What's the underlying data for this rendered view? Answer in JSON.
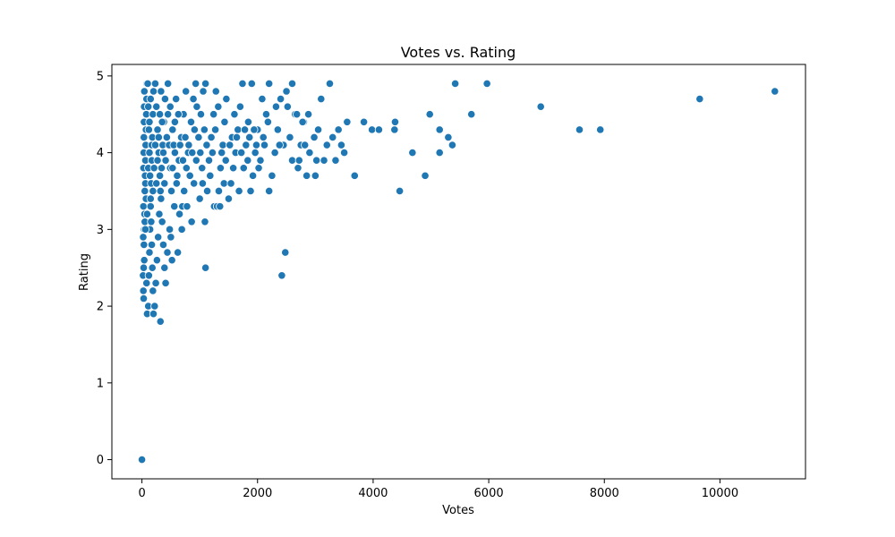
{
  "chart_data": {
    "type": "scatter",
    "title": "Votes vs. Rating",
    "xlabel": "Votes",
    "ylabel": "Rating",
    "xlim": [
      -520,
      11480
    ],
    "ylim": [
      -0.25,
      5.15
    ],
    "xticks": [
      0,
      2000,
      4000,
      6000,
      8000,
      10000
    ],
    "xtick_labels": [
      "0",
      "2000",
      "4000",
      "6000",
      "8000",
      "10000"
    ],
    "yticks": [
      0,
      1,
      2,
      3,
      4,
      5
    ],
    "ytick_labels": [
      "0",
      "1",
      "2",
      "3",
      "4",
      "5"
    ],
    "grid": false,
    "marker_color": "#1f77b4",
    "marker_edge_color": "#ffffff",
    "series": [
      {
        "points": [
          [
            0,
            0.0
          ],
          [
            25,
            2.2
          ],
          [
            30,
            2.5
          ],
          [
            35,
            2.8
          ],
          [
            40,
            3.0
          ],
          [
            45,
            3.2
          ],
          [
            50,
            3.5
          ],
          [
            55,
            3.7
          ],
          [
            60,
            3.9
          ],
          [
            65,
            4.1
          ],
          [
            70,
            4.3
          ],
          [
            75,
            4.5
          ],
          [
            80,
            4.7
          ],
          [
            85,
            4.9
          ],
          [
            20,
            2.4
          ],
          [
            22,
            2.9
          ],
          [
            26,
            3.3
          ],
          [
            28,
            3.8
          ],
          [
            32,
            4.0
          ],
          [
            34,
            4.2
          ],
          [
            36,
            4.4
          ],
          [
            38,
            4.6
          ],
          [
            42,
            4.8
          ],
          [
            30,
            2.1
          ],
          [
            40,
            2.6
          ],
          [
            50,
            3.1
          ],
          [
            60,
            3.6
          ],
          [
            70,
            3.4
          ],
          [
            80,
            2.3
          ],
          [
            90,
            1.9
          ],
          [
            110,
            2.0
          ],
          [
            120,
            2.4
          ],
          [
            130,
            2.7
          ],
          [
            140,
            3.0
          ],
          [
            150,
            3.3
          ],
          [
            160,
            3.6
          ],
          [
            170,
            3.9
          ],
          [
            180,
            4.2
          ],
          [
            190,
            4.5
          ],
          [
            200,
            4.8
          ],
          [
            100,
            4.9
          ],
          [
            110,
            4.6
          ],
          [
            120,
            4.3
          ],
          [
            130,
            4.0
          ],
          [
            140,
            3.7
          ],
          [
            150,
            3.4
          ],
          [
            160,
            3.1
          ],
          [
            170,
            2.8
          ],
          [
            180,
            2.5
          ],
          [
            190,
            2.2
          ],
          [
            200,
            1.9
          ],
          [
            220,
            2.0
          ],
          [
            240,
            2.3
          ],
          [
            260,
            2.6
          ],
          [
            280,
            2.9
          ],
          [
            300,
            3.2
          ],
          [
            320,
            3.5
          ],
          [
            340,
            3.8
          ],
          [
            360,
            4.1
          ],
          [
            380,
            4.4
          ],
          [
            400,
            4.7
          ],
          [
            230,
            4.9
          ],
          [
            250,
            4.6
          ],
          [
            270,
            4.3
          ],
          [
            290,
            4.0
          ],
          [
            310,
            3.7
          ],
          [
            330,
            3.4
          ],
          [
            350,
            3.1
          ],
          [
            370,
            2.8
          ],
          [
            390,
            2.5
          ],
          [
            410,
            2.3
          ],
          [
            320,
            1.8
          ],
          [
            440,
            2.7
          ],
          [
            480,
            3.0
          ],
          [
            520,
            2.6
          ],
          [
            560,
            3.3
          ],
          [
            600,
            3.6
          ],
          [
            640,
            3.9
          ],
          [
            680,
            4.2
          ],
          [
            720,
            4.5
          ],
          [
            760,
            4.8
          ],
          [
            450,
            4.9
          ],
          [
            490,
            4.6
          ],
          [
            530,
            4.3
          ],
          [
            570,
            4.0
          ],
          [
            610,
            3.7
          ],
          [
            650,
            3.2
          ],
          [
            690,
            3.0
          ],
          [
            730,
            3.5
          ],
          [
            770,
            3.8
          ],
          [
            810,
            4.1
          ],
          [
            850,
            4.4
          ],
          [
            890,
            4.7
          ],
          [
            930,
            4.9
          ],
          [
            500,
            2.9
          ],
          [
            620,
            2.7
          ],
          [
            700,
            3.3
          ],
          [
            780,
            3.3
          ],
          [
            860,
            3.1
          ],
          [
            900,
            3.6
          ],
          [
            940,
            3.9
          ],
          [
            980,
            4.2
          ],
          [
            1020,
            4.5
          ],
          [
            1060,
            4.8
          ],
          [
            1100,
            4.9
          ],
          [
            1000,
            3.4
          ],
          [
            1050,
            3.6
          ],
          [
            1090,
            3.1
          ],
          [
            1100,
            2.5
          ],
          [
            1130,
            3.5
          ],
          [
            1160,
            3.9
          ],
          [
            1200,
            4.2
          ],
          [
            1240,
            4.5
          ],
          [
            1280,
            4.8
          ],
          [
            1250,
            3.3
          ],
          [
            1300,
            3.3
          ],
          [
            1330,
            3.5
          ],
          [
            1360,
            3.8
          ],
          [
            1400,
            4.1
          ],
          [
            1430,
            4.4
          ],
          [
            1460,
            4.7
          ],
          [
            1350,
            3.3
          ],
          [
            1420,
            3.6
          ],
          [
            1500,
            3.4
          ],
          [
            1540,
            3.6
          ],
          [
            1580,
            3.8
          ],
          [
            1620,
            4.0
          ],
          [
            1660,
            4.3
          ],
          [
            1700,
            4.6
          ],
          [
            1740,
            4.9
          ],
          [
            1560,
            4.2
          ],
          [
            1680,
            3.5
          ],
          [
            1760,
            3.8
          ],
          [
            1800,
            4.1
          ],
          [
            1840,
            4.4
          ],
          [
            1880,
            3.5
          ],
          [
            1920,
            3.7
          ],
          [
            1960,
            4.0
          ],
          [
            2000,
            4.3
          ],
          [
            1900,
            4.9
          ],
          [
            2050,
            3.9
          ],
          [
            2100,
            4.2
          ],
          [
            2150,
            4.5
          ],
          [
            2200,
            3.5
          ],
          [
            2250,
            3.7
          ],
          [
            2300,
            4.0
          ],
          [
            2350,
            4.3
          ],
          [
            2400,
            4.7
          ],
          [
            2200,
            4.9
          ],
          [
            2450,
            4.1
          ],
          [
            2500,
            4.8
          ],
          [
            2550,
            4.2
          ],
          [
            2600,
            3.9
          ],
          [
            2650,
            4.5
          ],
          [
            2700,
            3.8
          ],
          [
            2750,
            4.1
          ],
          [
            2800,
            4.4
          ],
          [
            2850,
            3.7
          ],
          [
            2900,
            4.0
          ],
          [
            2600,
            4.9
          ],
          [
            2420,
            2.4
          ],
          [
            2480,
            2.7
          ],
          [
            3000,
            3.7
          ],
          [
            3050,
            4.3
          ],
          [
            3100,
            4.7
          ],
          [
            3150,
            3.9
          ],
          [
            3200,
            4.1
          ],
          [
            3250,
            4.9
          ],
          [
            3300,
            4.2
          ],
          [
            3350,
            3.9
          ],
          [
            3400,
            4.3
          ],
          [
            3450,
            4.1
          ],
          [
            3500,
            4.0
          ],
          [
            3550,
            4.4
          ],
          [
            3680,
            3.7
          ],
          [
            3840,
            4.4
          ],
          [
            3980,
            4.3
          ],
          [
            4100,
            4.3
          ],
          [
            4370,
            4.3
          ],
          [
            4380,
            4.4
          ],
          [
            4460,
            3.5
          ],
          [
            4680,
            4.0
          ],
          [
            4900,
            3.7
          ],
          [
            4980,
            4.5
          ],
          [
            5150,
            4.3
          ],
          [
            5150,
            4.0
          ],
          [
            5300,
            4.2
          ],
          [
            5370,
            4.1
          ],
          [
            5420,
            4.9
          ],
          [
            5700,
            4.5
          ],
          [
            5970,
            4.9
          ],
          [
            6900,
            4.6
          ],
          [
            7570,
            4.3
          ],
          [
            7930,
            4.3
          ],
          [
            9650,
            4.7
          ],
          [
            10950,
            4.8
          ],
          [
            60,
            3.0
          ],
          [
            90,
            3.2
          ],
          [
            110,
            3.8
          ],
          [
            130,
            4.4
          ],
          [
            150,
            4.7
          ],
          [
            170,
            4.1
          ],
          [
            190,
            3.5
          ],
          [
            210,
            3.8
          ],
          [
            230,
            4.1
          ],
          [
            250,
            3.6
          ],
          [
            270,
            3.9
          ],
          [
            290,
            4.2
          ],
          [
            310,
            4.5
          ],
          [
            330,
            4.8
          ],
          [
            350,
            4.4
          ],
          [
            370,
            4.0
          ],
          [
            390,
            3.6
          ],
          [
            410,
            3.9
          ],
          [
            430,
            4.2
          ],
          [
            450,
            4.5
          ],
          [
            470,
            4.1
          ],
          [
            490,
            3.8
          ],
          [
            510,
            3.5
          ],
          [
            530,
            3.8
          ],
          [
            550,
            4.1
          ],
          [
            570,
            4.4
          ],
          [
            590,
            4.7
          ],
          [
            630,
            4.5
          ],
          [
            660,
            4.1
          ],
          [
            710,
            3.9
          ],
          [
            750,
            4.2
          ],
          [
            800,
            4.0
          ],
          [
            830,
            3.7
          ],
          [
            870,
            4.0
          ],
          [
            910,
            4.3
          ],
          [
            950,
            4.6
          ],
          [
            1010,
            4.0
          ],
          [
            1040,
            3.8
          ],
          [
            1080,
            4.3
          ],
          [
            1120,
            4.1
          ],
          [
            1180,
            3.7
          ],
          [
            1220,
            4.0
          ],
          [
            1270,
            4.3
          ],
          [
            1320,
            4.6
          ],
          [
            1380,
            4.0
          ],
          [
            1450,
            3.9
          ],
          [
            1520,
            4.1
          ],
          [
            1600,
            4.5
          ],
          [
            1640,
            4.2
          ],
          [
            1720,
            4.0
          ],
          [
            1780,
            4.3
          ],
          [
            1830,
            3.9
          ],
          [
            1860,
            4.2
          ],
          [
            1940,
            4.3
          ],
          [
            1980,
            4.1
          ],
          [
            2020,
            3.8
          ],
          [
            2080,
            4.7
          ],
          [
            2120,
            4.1
          ],
          [
            2180,
            4.4
          ],
          [
            2320,
            4.6
          ],
          [
            2380,
            4.1
          ],
          [
            2520,
            4.6
          ],
          [
            2560,
            4.2
          ],
          [
            2680,
            4.5
          ],
          [
            2720,
            3.9
          ],
          [
            2780,
            4.4
          ],
          [
            2820,
            4.1
          ],
          [
            2880,
            4.5
          ],
          [
            2980,
            4.2
          ],
          [
            3020,
            3.9
          ]
        ]
      }
    ]
  }
}
